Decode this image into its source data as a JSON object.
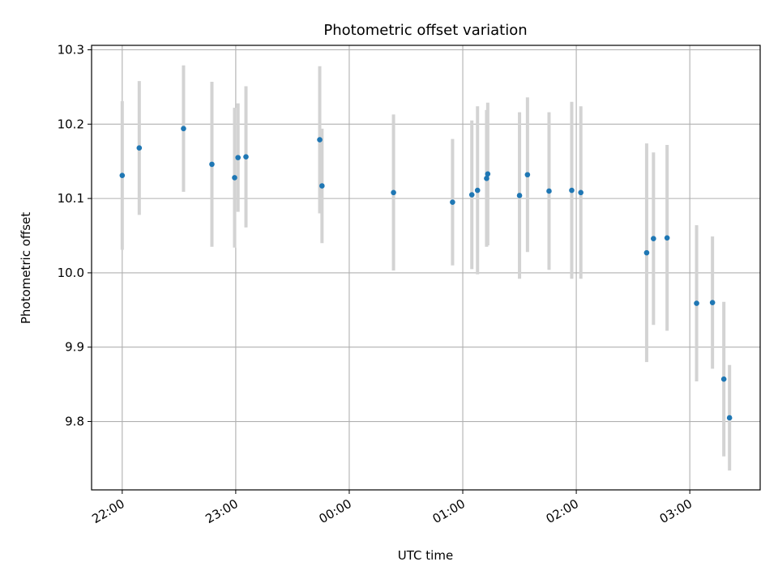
{
  "chart_data": {
    "type": "scatter",
    "title": "Photometric offset variation",
    "xlabel": "UTC time",
    "ylabel": "Photometric offset",
    "x_axis": "time (hours, 22:00 = 22.0; after midnight +24)",
    "xlim_hours": [
      21.73,
      27.62
    ],
    "ylim": [
      9.708,
      10.306
    ],
    "x_ticks": [
      {
        "value": 22,
        "label": "22:00"
      },
      {
        "value": 23,
        "label": "23:00"
      },
      {
        "value": 24,
        "label": "00:00"
      },
      {
        "value": 25,
        "label": "01:00"
      },
      {
        "value": 26,
        "label": "02:00"
      },
      {
        "value": 27,
        "label": "03:00"
      }
    ],
    "y_ticks": [
      {
        "value": 9.8,
        "label": "9.8"
      },
      {
        "value": 9.9,
        "label": "9.9"
      },
      {
        "value": 10.0,
        "label": "10.0"
      },
      {
        "value": 10.1,
        "label": "10.1"
      },
      {
        "value": 10.2,
        "label": "10.2"
      },
      {
        "value": 10.3,
        "label": "10.3"
      }
    ],
    "grid": true,
    "marker_color": "#1f77b4",
    "errorbar_color": "#d3d3d3",
    "points": [
      {
        "x": 22.0,
        "y": 10.131,
        "yerr": 0.1
      },
      {
        "x": 22.15,
        "y": 10.168,
        "yerr": 0.09
      },
      {
        "x": 22.54,
        "y": 10.194,
        "yerr": 0.085
      },
      {
        "x": 22.79,
        "y": 10.146,
        "yerr": 0.111
      },
      {
        "x": 22.99,
        "y": 10.128,
        "yerr": 0.094
      },
      {
        "x": 23.02,
        "y": 10.155,
        "yerr": 0.073
      },
      {
        "x": 23.09,
        "y": 10.156,
        "yerr": 0.095
      },
      {
        "x": 23.74,
        "y": 10.179,
        "yerr": 0.099
      },
      {
        "x": 23.76,
        "y": 10.117,
        "yerr": 0.077
      },
      {
        "x": 24.39,
        "y": 10.108,
        "yerr": 0.105
      },
      {
        "x": 24.91,
        "y": 10.095,
        "yerr": 0.085
      },
      {
        "x": 25.08,
        "y": 10.105,
        "yerr": 0.1
      },
      {
        "x": 25.13,
        "y": 10.111,
        "yerr": 0.113
      },
      {
        "x": 25.21,
        "y": 10.127,
        "yerr": 0.092
      },
      {
        "x": 25.22,
        "y": 10.133,
        "yerr": 0.096
      },
      {
        "x": 25.5,
        "y": 10.104,
        "yerr": 0.112
      },
      {
        "x": 25.57,
        "y": 10.132,
        "yerr": 0.104
      },
      {
        "x": 25.76,
        "y": 10.11,
        "yerr": 0.106
      },
      {
        "x": 25.96,
        "y": 10.111,
        "yerr": 0.119
      },
      {
        "x": 26.04,
        "y": 10.108,
        "yerr": 0.116
      },
      {
        "x": 26.62,
        "y": 10.027,
        "yerr": 0.147
      },
      {
        "x": 26.68,
        "y": 10.046,
        "yerr": 0.116
      },
      {
        "x": 26.8,
        "y": 10.047,
        "yerr": 0.125
      },
      {
        "x": 27.06,
        "y": 9.959,
        "yerr": 0.105
      },
      {
        "x": 27.2,
        "y": 9.96,
        "yerr": 0.089
      },
      {
        "x": 27.3,
        "y": 9.857,
        "yerr": 0.104
      },
      {
        "x": 27.35,
        "y": 9.805,
        "yerr": 0.071
      }
    ]
  }
}
